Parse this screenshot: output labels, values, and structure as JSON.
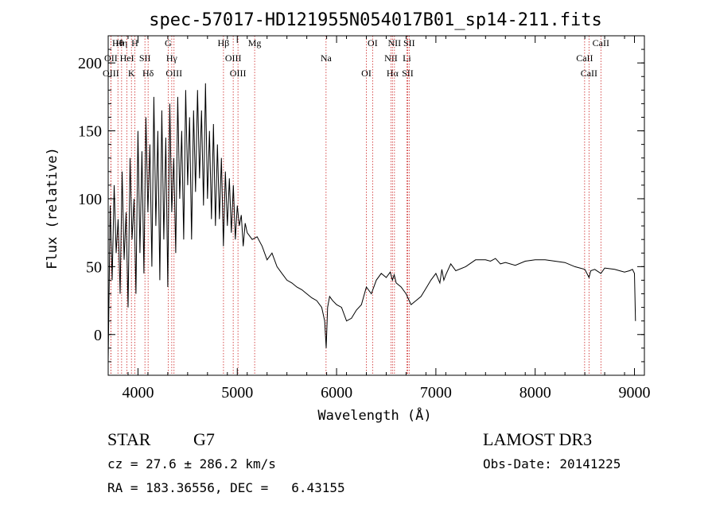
{
  "chart_data": {
    "type": "line",
    "title": "spec-57017-HD121955N054017B01_sp14-211.fits",
    "xlabel": "Wavelength (Å)",
    "ylabel": "Flux (relative)",
    "xlim": [
      3700,
      9100
    ],
    "ylim": [
      -30,
      220
    ],
    "xticks": [
      "4000",
      "5000",
      "6000",
      "7000",
      "8000",
      "9000"
    ],
    "yticks": [
      "0",
      "50",
      "100",
      "150",
      "200"
    ],
    "series": [
      {
        "name": "spectrum",
        "x": [
          3700,
          3720,
          3740,
          3760,
          3780,
          3800,
          3820,
          3840,
          3860,
          3880,
          3900,
          3920,
          3940,
          3960,
          3980,
          4000,
          4020,
          4040,
          4060,
          4080,
          4100,
          4120,
          4140,
          4160,
          4180,
          4200,
          4220,
          4240,
          4260,
          4280,
          4300,
          4320,
          4340,
          4360,
          4380,
          4400,
          4420,
          4440,
          4460,
          4480,
          4500,
          4520,
          4540,
          4560,
          4580,
          4600,
          4620,
          4640,
          4660,
          4680,
          4700,
          4720,
          4740,
          4760,
          4780,
          4800,
          4820,
          4840,
          4860,
          4880,
          4900,
          4920,
          4940,
          4960,
          4980,
          5000,
          5020,
          5040,
          5060,
          5080,
          5100,
          5150,
          5200,
          5250,
          5300,
          5350,
          5400,
          5450,
          5500,
          5550,
          5600,
          5650,
          5700,
          5750,
          5800,
          5850,
          5880,
          5895,
          5910,
          5930,
          5960,
          6000,
          6050,
          6100,
          6150,
          6200,
          6250,
          6300,
          6350,
          6400,
          6450,
          6500,
          6540,
          6563,
          6580,
          6600,
          6650,
          6700,
          6750,
          6800,
          6850,
          6900,
          6950,
          7000,
          7040,
          7060,
          7080,
          7100,
          7150,
          7200,
          7300,
          7400,
          7500,
          7550,
          7600,
          7650,
          7700,
          7800,
          7900,
          8000,
          8100,
          8200,
          8300,
          8400,
          8500,
          8542,
          8560,
          8600,
          8662,
          8700,
          8800,
          8850,
          8900,
          8950,
          8980,
          9000,
          9010
        ],
        "values": [
          -20,
          95,
          40,
          110,
          60,
          85,
          30,
          120,
          55,
          90,
          20,
          130,
          70,
          100,
          30,
          150,
          60,
          135,
          45,
          160,
          90,
          140,
          50,
          175,
          80,
          150,
          40,
          165,
          70,
          145,
          35,
          170,
          90,
          130,
          60,
          175,
          100,
          150,
          70,
          180,
          110,
          160,
          70,
          165,
          105,
          180,
          115,
          165,
          95,
          185,
          100,
          150,
          85,
          155,
          80,
          140,
          85,
          130,
          65,
          120,
          80,
          115,
          75,
          110,
          70,
          95,
          80,
          88,
          65,
          82,
          75,
          70,
          72,
          65,
          55,
          60,
          50,
          45,
          40,
          38,
          35,
          33,
          30,
          27,
          25,
          20,
          10,
          -10,
          20,
          28,
          25,
          22,
          20,
          10,
          12,
          18,
          22,
          35,
          30,
          40,
          45,
          42,
          46,
          40,
          44,
          38,
          35,
          30,
          22,
          25,
          28,
          34,
          40,
          45,
          38,
          48,
          40,
          44,
          52,
          47,
          50,
          55,
          55,
          54,
          56,
          52,
          53,
          51,
          54,
          55,
          55,
          54,
          53,
          50,
          48,
          42,
          47,
          48,
          45,
          49,
          48,
          47,
          46,
          47,
          48,
          45,
          10
        ]
      }
    ],
    "lines": [
      {
        "label": "Hθ",
        "wl": 3798
      },
      {
        "label": "OII",
        "wl": 3727
      },
      {
        "label": "OIII",
        "wl": 3727
      },
      {
        "label": "Hη",
        "wl": 3835
      },
      {
        "label": "HeI",
        "wl": 3889
      },
      {
        "label": "K",
        "wl": 3934
      },
      {
        "label": "H",
        "wl": 3968
      },
      {
        "label": "SII",
        "wl": 4070
      },
      {
        "label": "Hδ",
        "wl": 4102
      },
      {
        "label": "G",
        "wl": 4304
      },
      {
        "label": "Hγ",
        "wl": 4340
      },
      {
        "label": "OIII",
        "wl": 4363
      },
      {
        "label": "Hβ",
        "wl": 4861
      },
      {
        "label": "OIII",
        "wl": 4959
      },
      {
        "label": "OIII",
        "wl": 5007
      },
      {
        "label": "Mg",
        "wl": 5175
      },
      {
        "label": "Na",
        "wl": 5894
      },
      {
        "label": "OI",
        "wl": 6300
      },
      {
        "label": "OI",
        "wl": 6363
      },
      {
        "label": "NII",
        "wl": 6548
      },
      {
        "label": "Hα",
        "wl": 6563
      },
      {
        "label": "NII",
        "wl": 6583
      },
      {
        "label": "Li",
        "wl": 6708
      },
      {
        "label": "SII",
        "wl": 6716
      },
      {
        "label": "SII",
        "wl": 6731
      },
      {
        "label": "CaII",
        "wl": 8498
      },
      {
        "label": "CaII",
        "wl": 8542
      },
      {
        "label": "CaII",
        "wl": 8662
      }
    ]
  },
  "info": {
    "object_class": "STAR",
    "subclass": "G7",
    "survey": "LAMOST DR3",
    "redshift_line": "cz = 27.6 ± 286.2 km/s",
    "obs_date_line": "Obs-Date: 20141225",
    "coords_line": "RA = 183.36556, DEC =   6.43155"
  },
  "colors": {
    "axis": "#000000",
    "spectrum": "#000000",
    "lines": "#cc2222"
  }
}
